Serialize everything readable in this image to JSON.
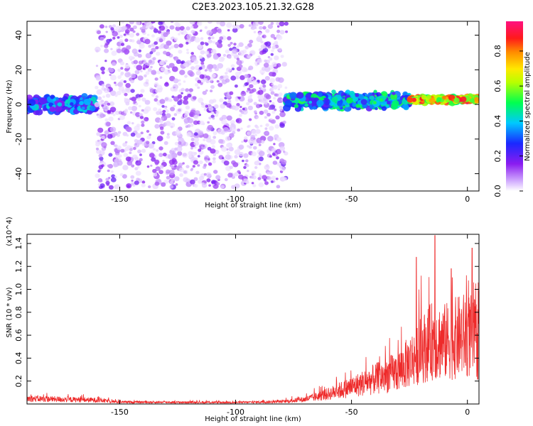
{
  "title": "C2E3.2023.105.21.32.G28",
  "chart_data": [
    {
      "type": "heatmap",
      "title": "C2E3.2023.105.21.32.G28",
      "xlabel": "Height of straight line (km)",
      "ylabel": "Frequency (Hz)",
      "xlim": [
        -190,
        5
      ],
      "ylim": [
        -50,
        48
      ],
      "xticks": [
        -150,
        -100,
        -50,
        0
      ],
      "yticks": [
        -40,
        -20,
        0,
        20,
        40
      ],
      "colorbar": {
        "label": "Normalized spectral amplitude",
        "ticks": [
          0.0,
          0.2,
          0.4,
          0.6,
          0.8
        ],
        "range": [
          0,
          0.97
        ],
        "colormap": "rainbow (white-violet-blue-cyan-green-yellow-orange-red-magenta)"
      },
      "regions": [
        {
          "x_range": [
            -190,
            -160
          ],
          "freq_center": 0,
          "freq_halfwidth": 6,
          "amplitude": [
            0.15,
            0.45
          ],
          "description": "band"
        },
        {
          "x_range": [
            -160,
            -78
          ],
          "freq_center": 0,
          "freq_halfwidth": 48,
          "amplitude": [
            0.02,
            0.2
          ],
          "description": "diffuse noise"
        },
        {
          "x_range": [
            -78,
            -25
          ],
          "freq_center": 2,
          "freq_halfwidth": 6,
          "amplitude": [
            0.2,
            0.55
          ],
          "description": "band"
        },
        {
          "x_range": [
            -25,
            5
          ],
          "freq_center": 2,
          "freq_halfwidth": 2.5,
          "amplitude": [
            0.5,
            0.95
          ],
          "description": "narrow strong band"
        }
      ]
    },
    {
      "type": "line",
      "xlabel": "Height of straight line (km)",
      "ylabel": "SNR (10 * v/v)",
      "y_multiplier": "(x10^4)",
      "xlim": [
        -190,
        5
      ],
      "ylim": [
        0,
        1.48
      ],
      "xticks": [
        -150,
        -100,
        -50,
        0
      ],
      "yticks": [
        0.2,
        0.4,
        0.6,
        0.8,
        1.0,
        1.2,
        1.4
      ],
      "color": "#ee2a2a",
      "envelope": {
        "x": [
          -190,
          -160,
          -150,
          -100,
          -80,
          -70,
          -60,
          -50,
          -40,
          -30,
          -25,
          -20,
          -15,
          -10,
          -5,
          0,
          5
        ],
        "y": [
          0.07,
          0.05,
          0.025,
          0.02,
          0.03,
          0.06,
          0.13,
          0.22,
          0.32,
          0.42,
          0.55,
          0.7,
          0.82,
          0.8,
          0.85,
          0.9,
          0.8
        ]
      },
      "peaks": [
        {
          "x": -22,
          "y": 1.28
        },
        {
          "x": -14,
          "y": 1.47
        },
        {
          "x": -7,
          "y": 1.18
        },
        {
          "x": 2,
          "y": 1.36
        }
      ]
    }
  ]
}
